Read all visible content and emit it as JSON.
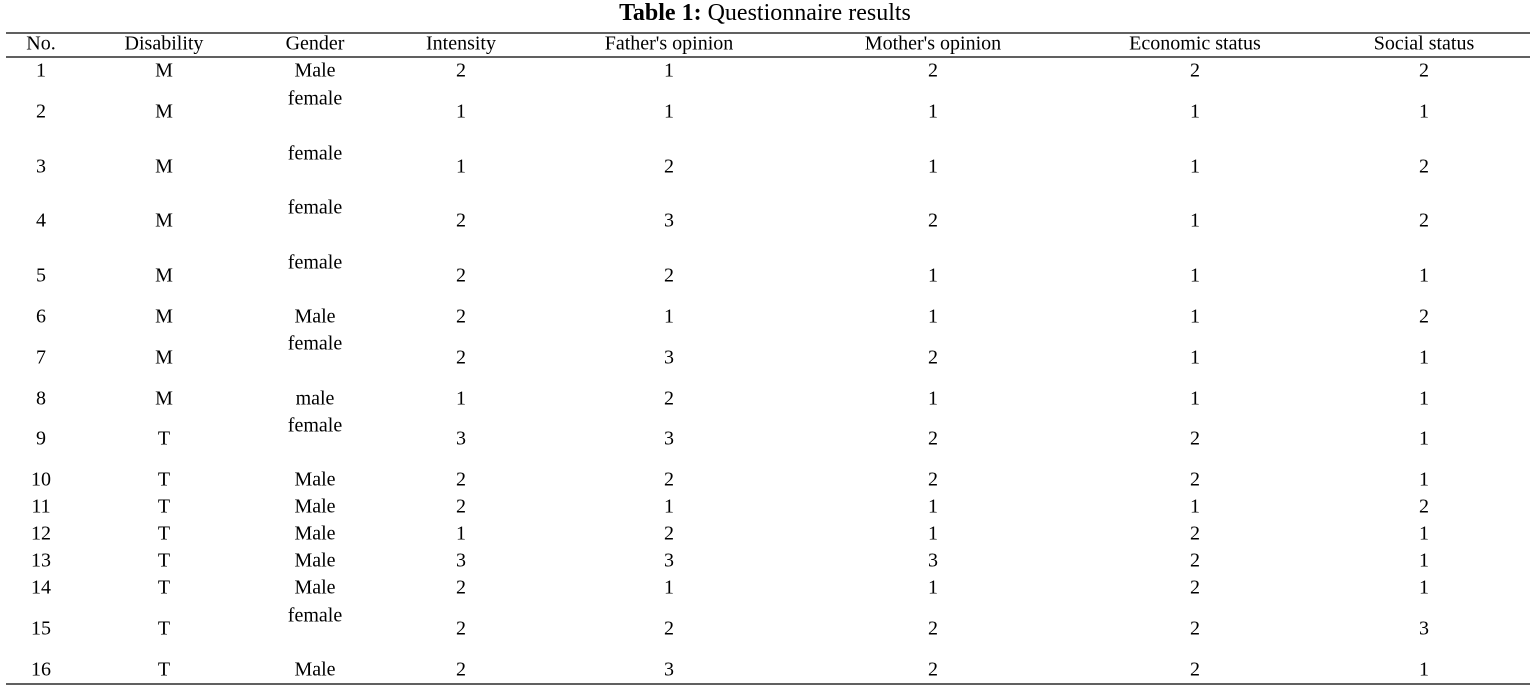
{
  "table": {
    "caption": {
      "label": "Table 1:",
      "text": "Questionnaire results"
    },
    "header": [
      "No.",
      "Disability",
      "Gender",
      "Intensity",
      "Father's opinion",
      "Mother's opinion",
      "Economic status",
      "Social status"
    ],
    "rows": [
      [
        1,
        "M",
        "Male",
        2,
        1,
        2,
        2,
        2
      ],
      [
        2,
        "M",
        "female",
        1,
        1,
        1,
        1,
        1
      ],
      [
        3,
        "M",
        "female",
        1,
        2,
        1,
        1,
        2
      ],
      [
        4,
        "M",
        "female",
        2,
        3,
        2,
        1,
        2
      ],
      [
        5,
        "M",
        "female",
        2,
        2,
        1,
        1,
        1
      ],
      [
        6,
        "M",
        "Male",
        2,
        1,
        1,
        1,
        2
      ],
      [
        7,
        "M",
        "female",
        2,
        3,
        2,
        1,
        1
      ],
      [
        8,
        "M",
        "male",
        1,
        2,
        1,
        1,
        1
      ],
      [
        9,
        "T",
        "female",
        3,
        3,
        2,
        2,
        1
      ],
      [
        10,
        "T",
        "Male",
        2,
        2,
        2,
        2,
        1
      ],
      [
        11,
        "T",
        "Male",
        2,
        1,
        1,
        1,
        2
      ],
      [
        12,
        "T",
        "Male",
        1,
        2,
        1,
        2,
        1
      ],
      [
        13,
        "T",
        "Male",
        3,
        3,
        3,
        2,
        1
      ],
      [
        14,
        "T",
        "Male",
        2,
        1,
        1,
        2,
        1
      ],
      [
        15,
        "T",
        "female",
        2,
        2,
        2,
        2,
        3
      ],
      [
        16,
        "T",
        "Male",
        2,
        3,
        2,
        2,
        1
      ]
    ]
  }
}
